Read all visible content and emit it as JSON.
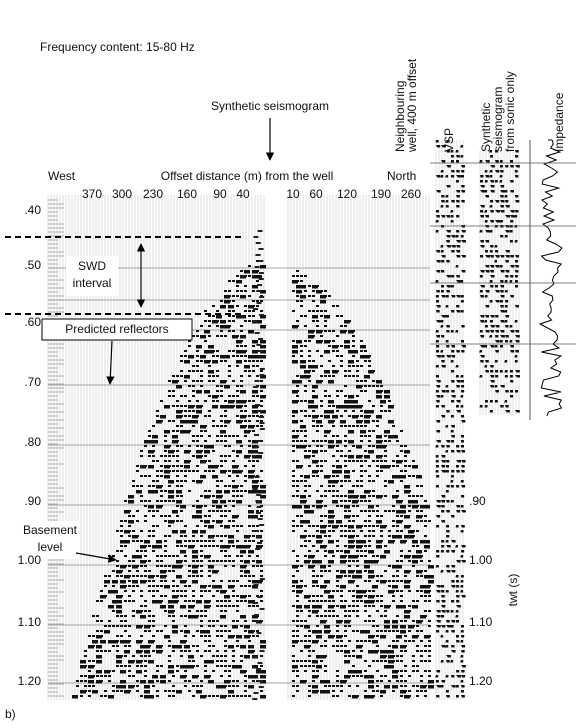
{
  "header": {
    "note": "Frequency content: 15-80 Hz",
    "synthetic_label": "Synthetic seismogram"
  },
  "columns": [
    {
      "lines": [
        "Neighbouring",
        "well, 400 m offset"
      ]
    },
    {
      "lines": [
        "VSP"
      ]
    },
    {
      "lines": [
        "Synthetic",
        "seismogram",
        "from sonic only"
      ]
    },
    {
      "lines": [
        "Impedance"
      ]
    }
  ],
  "section": {
    "west": "West",
    "axis_title": "Offset distance (m) from the well",
    "north": "North",
    "offsets_left": [
      370,
      300,
      230,
      160,
      90,
      40
    ],
    "offsets_right": [
      10,
      60,
      120,
      190,
      260
    ],
    "times": [
      ".40",
      ".50",
      ".60",
      ".70",
      ".80",
      ".90",
      "1.00",
      "1.10",
      "1.20"
    ]
  },
  "right_axis": {
    "times": [
      ".90",
      "1.00",
      "1.10",
      "1.20"
    ],
    "title": "twt (s)"
  },
  "annotations": {
    "swd": [
      "SWD",
      "interval"
    ],
    "reflectors": "Predicted reflectors",
    "basement": [
      "Basement",
      "level"
    ]
  },
  "panel_label": "b)"
}
